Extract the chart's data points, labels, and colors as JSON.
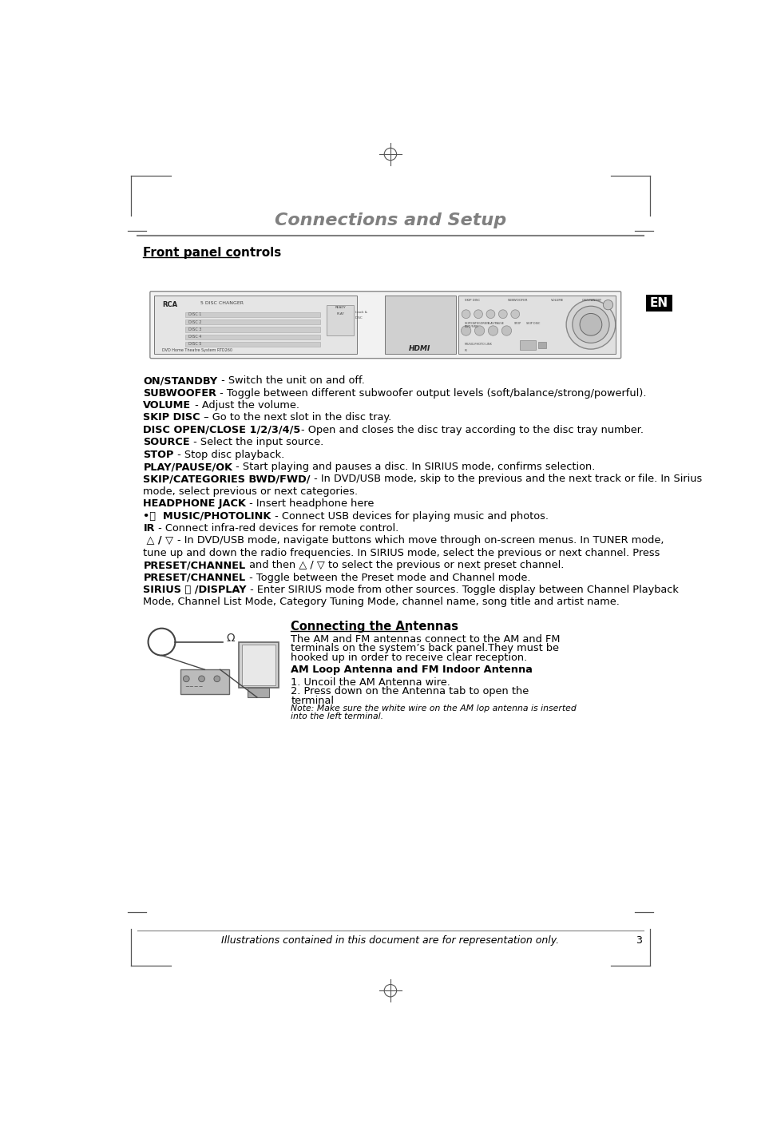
{
  "page_title": "Connections and Setup",
  "section1_title": "Front panel controls",
  "en_label": "EN",
  "footer_text": "Illustrations contained in this document are for representation only.",
  "footer_page": "3",
  "bg_color": "#ffffff",
  "title_color": "#808080",
  "text_color": "#000000",
  "en_bg": "#000000",
  "en_fg": "#ffffff",
  "line_color": "#808080",
  "body_lines": [
    {
      "bold": "ON/STANDBY",
      "normal": " - Switch the unit on and off.",
      "wrap": false
    },
    {
      "bold": "SUBWOOFER",
      "normal": " - Toggle between different subwoofer output levels (soft/balance/strong/powerful).",
      "wrap": false
    },
    {
      "bold": "VOLUME",
      "normal": " - Adjust the volume.",
      "wrap": false
    },
    {
      "bold": "SKIP DISC",
      "normal": " – Go to the next slot in the disc tray.",
      "wrap": false
    },
    {
      "bold": "DISC OPEN/CLOSE 1/2/3/4/5",
      "normal": "- Open and closes the disc tray according to the disc tray number.",
      "wrap": false
    },
    {
      "bold": "SOURCE",
      "normal": " - Select the input source.",
      "wrap": false
    },
    {
      "bold": "STOP",
      "normal": " - Stop disc playback.",
      "wrap": false
    },
    {
      "bold": "PLAY/PAUSE/OK",
      "normal": " - Start playing and pauses a disc. In SIRIUS mode, confirms selection.",
      "wrap": false
    },
    {
      "bold": "SKIP/CATEGORIES BWD/FWD/",
      "normal": " - In DVD/USB mode, skip to the previous and the next track or file. In Sirius",
      "normal2": "mode, select previous or next categories.",
      "wrap": true
    },
    {
      "bold": "HEADPHONE JACK",
      "normal": " - Insert headphone here",
      "wrap": false
    },
    {
      "bold": "•⭘  MUSIC/PHOTOLINK",
      "normal": " - Connect USB devices for playing music and photos.",
      "wrap": false
    },
    {
      "bold": "IR",
      "normal": " - Connect infra-red devices for remote control.",
      "wrap": false
    },
    {
      "bold": " △ / ▽ ",
      "normal": "- In DVD/USB mode, navigate buttons which move through on-screen menus. In TUNER mode,",
      "normal2": "tune up and down the radio frequencies. In SIRIUS mode, select the previous or next channel. Press",
      "wrap": true
    },
    {
      "bold": "PRESET/CHANNEL",
      "normal": " and then △ / ▽ to select the previous or next preset channel.",
      "wrap": false
    },
    {
      "bold": "PRESET/CHANNEL",
      "normal": " - Toggle between the Preset mode and Channel mode.",
      "wrap": false
    },
    {
      "bold": "SIRIUS ⦿ /DISPLAY",
      "normal": " - Enter SIRIUS mode from other sources. Toggle display between Channel Playback",
      "normal2": "Mode, Channel List Mode, Category Tuning Mode, channel name, song title and artist name.",
      "wrap": true
    }
  ],
  "antenna_title": "Connecting the Antennas",
  "antenna_body1": "The AM and FM antennas connect to the AM and FM",
  "antenna_body2": "terminals on the system’s back panel.They must be",
  "antenna_body3": "hooked up in order to receive clear reception.",
  "antenna_sub": "AM Loop Antenna and FM Indoor Antenna",
  "antenna_step1": "1. Uncoil the AM Antenna wire.",
  "antenna_step2": "2. Press down on the Antenna tab to open the",
  "antenna_step3": "terminal",
  "antenna_note1": "Note: Make sure the white wire on the AM lop antenna is inserted",
  "antenna_note2": "into the left terminal."
}
